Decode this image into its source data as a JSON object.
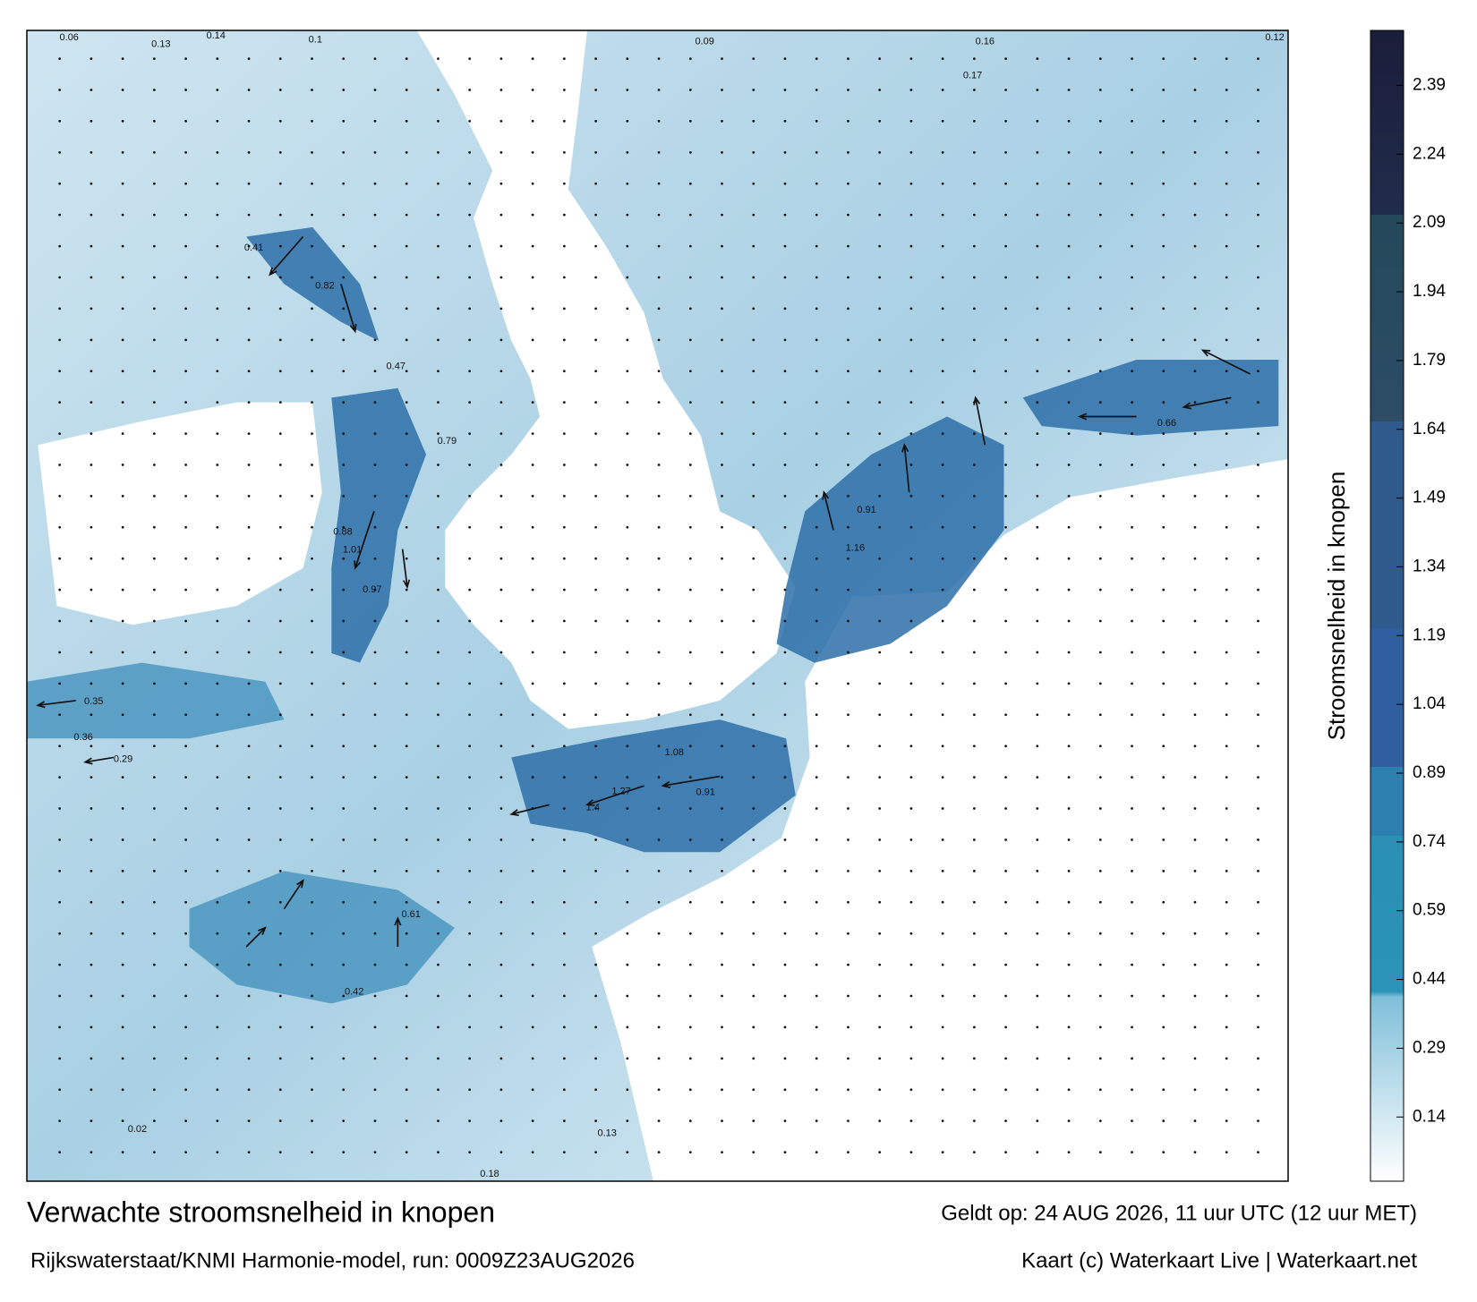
{
  "header": {
    "title": "Verwachte stroomsnelheid in knopen",
    "valid": "Geldt op: 24 AUG 2026, 11 uur UTC (12 uur MET)",
    "source": "Rijkswaterstaat/KNMI Harmonie-model, run: 0009Z23AUG2026",
    "credit": "Kaart (c) Waterkaart Live | Waterkaart.net"
  },
  "colorbar": {
    "label": "Stroomsnelheid in knopen",
    "lim": [
      0,
      2.51
    ],
    "ticks": [
      0.14,
      0.29,
      0.44,
      0.59,
      0.74,
      0.89,
      1.04,
      1.19,
      1.34,
      1.49,
      1.64,
      1.79,
      1.94,
      2.09,
      2.24,
      2.39
    ]
  },
  "map_labels": [
    0.06,
    0.13,
    0.14,
    0.1,
    0.09,
    0.16,
    0.17,
    0.12,
    0.41,
    0.82,
    0.47,
    0.79,
    1.01,
    0.88,
    0.97,
    0.36,
    0.29,
    0.35,
    1.16,
    0.91,
    0.66,
    1.08,
    1.27,
    1.4,
    0.91,
    0.61,
    0.42,
    0.02,
    0.18,
    0.13
  ]
}
